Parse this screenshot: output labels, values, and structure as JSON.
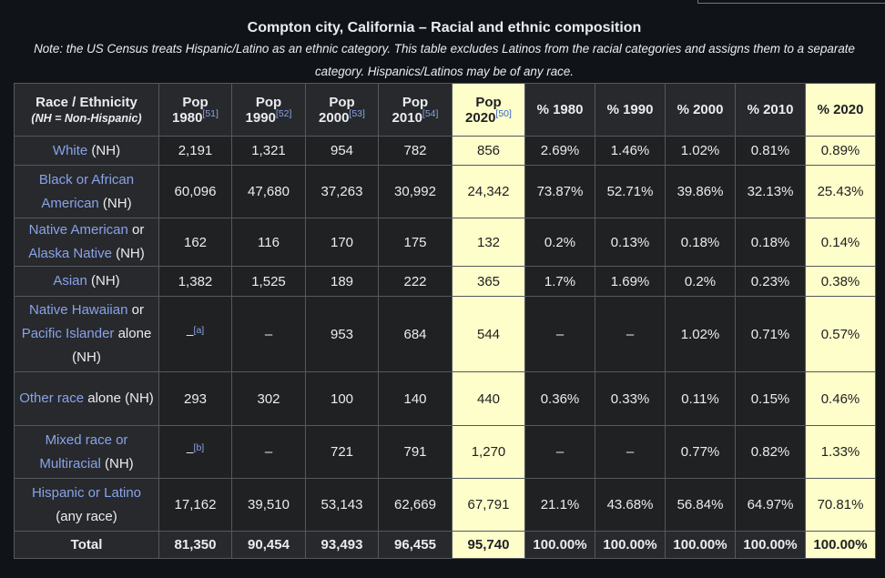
{
  "caption": {
    "title": "Compton city, California – Racial and ethnic composition",
    "note": "Note: the US Census treats Hispanic/Latino as an ethnic category. This table excludes Latinos from the racial categories and assigns them to a separate category. Hispanics/Latinos may be of any race."
  },
  "header": {
    "race": "Race / Ethnicity",
    "race_sub": "(NH = Non-Hispanic)",
    "pop1980": "Pop 1980",
    "ref1980": "[51]",
    "pop1990": "Pop 1990",
    "ref1990": "[52]",
    "pop2000": "Pop 2000",
    "ref2000": "[53]",
    "pop2010": "Pop 2010",
    "ref2010": "[54]",
    "pop2020": "Pop 2020",
    "ref2020": "[50]",
    "pct1980": "% 1980",
    "pct1990": "% 1990",
    "pct2000": "% 2000",
    "pct2010": "% 2010",
    "pct2020": "% 2020"
  },
  "rows": [
    {
      "link": "White",
      "rest": " (NH)",
      "vals": [
        "2,191",
        "1,321",
        "954",
        "782",
        "856",
        "2.69%",
        "1.46%",
        "1.02%",
        "0.81%",
        "0.89%"
      ]
    },
    {
      "link": "Black or African American",
      "rest": " (NH)",
      "vals": [
        "60,096",
        "47,680",
        "37,263",
        "30,992",
        "24,342",
        "73.87%",
        "52.71%",
        "39.86%",
        "32.13%",
        "25.43%"
      ]
    },
    {
      "link": "Native American",
      "mid": " or ",
      "link2": "Alaska Native",
      "rest": " (NH)",
      "vals": [
        "162",
        "116",
        "170",
        "175",
        "132",
        "0.2%",
        "0.13%",
        "0.18%",
        "0.18%",
        "0.14%"
      ]
    },
    {
      "link": "Asian",
      "rest": " (NH)",
      "vals": [
        "1,382",
        "1,525",
        "189",
        "222",
        "365",
        "1.7%",
        "1.69%",
        "0.2%",
        "0.23%",
        "0.38%"
      ]
    },
    {
      "link": "Native Hawaiian",
      "mid": " or ",
      "link2": "Pacific Islander",
      "rest": " alone (NH)",
      "vals": [
        "–[a]",
        "–",
        "953",
        "684",
        "544",
        "–",
        "–",
        "1.02%",
        "0.71%",
        "0.57%"
      ]
    },
    {
      "link": "Other race",
      "rest": " alone (NH)",
      "vals": [
        "293",
        "302",
        "100",
        "140",
        "440",
        "0.36%",
        "0.33%",
        "0.11%",
        "0.15%",
        "0.46%"
      ]
    },
    {
      "link": "Mixed race or Multiracial",
      "rest": " (NH)",
      "vals": [
        "–[b]",
        "–",
        "721",
        "791",
        "1,270",
        "–",
        "–",
        "0.77%",
        "0.82%",
        "1.33%"
      ]
    },
    {
      "link": "Hispanic or Latino",
      "rest": " (any race)",
      "vals": [
        "17,162",
        "39,510",
        "53,143",
        "62,669",
        "67,791",
        "21.1%",
        "43.68%",
        "56.84%",
        "64.97%",
        "70.81%"
      ]
    }
  ],
  "total": {
    "label": "Total",
    "vals": [
      "81,350",
      "90,454",
      "93,493",
      "96,455",
      "95,740",
      "100.00%",
      "100.00%",
      "100.00%",
      "100.00%",
      "100.00%"
    ]
  },
  "colors": {
    "highlight": "#fefecb",
    "link": "#88a3e8",
    "background": "#101418"
  }
}
